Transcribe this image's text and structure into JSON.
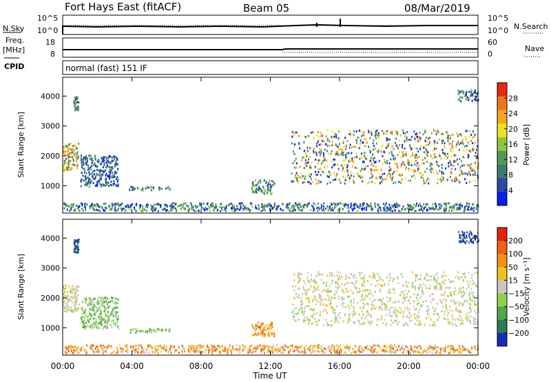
{
  "header": {
    "station": "Fort Hays East (fitACF)",
    "beam": "Beam 05",
    "date": "08/Mar/2019"
  },
  "status_panels": {
    "nsky_label": "N.Sky",
    "nsky_ticks": [
      "10^5",
      "10^0"
    ],
    "nsearch_label": "N.Search",
    "nsearch_ticks": [
      "10^5",
      "10^0"
    ],
    "freq_label_1": "Freq.",
    "freq_label_2": "[MHz]",
    "freq_ticks": [
      "18",
      "8"
    ],
    "nave_label": "Nave",
    "nave_ticks": [
      "60",
      "0"
    ],
    "cpid_label": "CPID",
    "cpid_text": "normal (fast) 151 IF"
  },
  "chart_data": [
    {
      "type": "heatmap",
      "name": "Power",
      "ylabel": "Slant Range [km]",
      "yticks": [
        "4000",
        "3000",
        "2000",
        "1000"
      ],
      "colorbar": {
        "label": "Power [dB]",
        "ticks": [
          "28",
          "24",
          "20",
          "16",
          "12",
          "8",
          "4"
        ],
        "colors": [
          "#0a1ee6",
          "#2a4aa8",
          "#3d7a6e",
          "#4f9a5a",
          "#8ec63f",
          "#f0e020",
          "#f5a623",
          "#f07818",
          "#e62a10"
        ]
      },
      "echo_regions": [
        {
          "t0": 0.0,
          "t1": 0.9,
          "r0": 1550,
          "r1": 2450,
          "dominant": "orange-green"
        },
        {
          "t0": 0.6,
          "t1": 0.9,
          "r0": 3550,
          "r1": 4000,
          "dominant": "green"
        },
        {
          "t0": 1.0,
          "t1": 3.2,
          "r0": 1000,
          "r1": 2050,
          "dominant": "green-blue"
        },
        {
          "t0": 3.8,
          "t1": 6.2,
          "r0": 870,
          "r1": 1000,
          "dominant": "green"
        },
        {
          "t0": 10.9,
          "t1": 12.2,
          "r0": 750,
          "r1": 1220,
          "dominant": "green"
        },
        {
          "t0": 13.2,
          "t1": 24.0,
          "r0": 1100,
          "r1": 2900,
          "dominant": "green-blue with orange edge"
        },
        {
          "t0": 0.0,
          "t1": 24.0,
          "r0": 180,
          "r1": 450,
          "dominant": "blue-green"
        },
        {
          "t0": 22.8,
          "t1": 24.0,
          "r0": 3850,
          "r1": 4250,
          "dominant": "blue-green"
        }
      ]
    },
    {
      "type": "heatmap",
      "name": "Velocity",
      "ylabel": "Slant Range [km]",
      "yticks": [
        "4000",
        "3000",
        "2000",
        "1000"
      ],
      "colorbar": {
        "label": "Velocity [m s⁻¹]",
        "ticks": [
          "200",
          "100",
          "50",
          "15",
          "−15",
          "−50",
          "−100",
          "−200"
        ],
        "colors": [
          "#1a2ab8",
          "#2a7a5a",
          "#4fa84a",
          "#8ed44a",
          "#c8c8c0",
          "#f0c020",
          "#f5901a",
          "#f06010",
          "#e61e10"
        ]
      },
      "echo_regions": [
        {
          "t0": 0.0,
          "t1": 0.9,
          "r0": 1550,
          "r1": 2450,
          "dominant": "grey"
        },
        {
          "t0": 0.6,
          "t1": 0.9,
          "r0": 3550,
          "r1": 4000,
          "dominant": "blue"
        },
        {
          "t0": 1.0,
          "t1": 3.2,
          "r0": 1000,
          "r1": 2050,
          "dominant": "green"
        },
        {
          "t0": 3.8,
          "t1": 6.2,
          "r0": 870,
          "r1": 1000,
          "dominant": "grey-green"
        },
        {
          "t0": 10.9,
          "t1": 12.2,
          "r0": 750,
          "r1": 1220,
          "dominant": "orange"
        },
        {
          "t0": 13.2,
          "t1": 24.0,
          "r0": 1100,
          "r1": 2900,
          "dominant": "grey"
        },
        {
          "t0": 0.0,
          "t1": 24.0,
          "r0": 180,
          "r1": 450,
          "dominant": "orange-yellow"
        },
        {
          "t0": 22.8,
          "t1": 24.0,
          "r0": 3850,
          "r1": 4250,
          "dominant": "blue"
        }
      ]
    }
  ],
  "x_axis": {
    "ticks": [
      "00:00",
      "04:00",
      "08:00",
      "12:00",
      "16:00",
      "20:00",
      "00:00"
    ],
    "label": "Time UT"
  }
}
